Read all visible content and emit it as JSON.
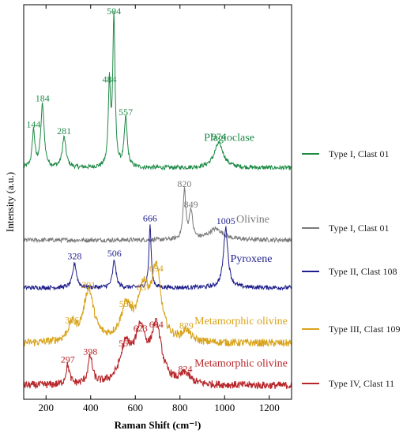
{
  "chart_data": {
    "type": "line",
    "xlabel": "Raman Shift (cm⁻¹)",
    "ylabel": "Intensity (a.u.)",
    "xlim": [
      100,
      1300
    ],
    "xticks": [
      200,
      400,
      600,
      800,
      1000,
      1200
    ],
    "y_ticks_shown": false,
    "legend_position": "right",
    "series": [
      {
        "name": "Type I, Clast 01",
        "mineral": "Plagioclase",
        "color": "#1e8a46",
        "baseline": 8.5,
        "peaks": [
          {
            "x": 144,
            "h": 1.35,
            "w": 7,
            "label": "144"
          },
          {
            "x": 184,
            "h": 2.3,
            "w": 9,
            "label": "184"
          },
          {
            "x": 281,
            "h": 1.1,
            "w": 10,
            "label": "281"
          },
          {
            "x": 484,
            "h": 3.0,
            "w": 6,
            "label": "484"
          },
          {
            "x": 504,
            "h": 5.5,
            "w": 6,
            "label": "504"
          },
          {
            "x": 557,
            "h": 1.8,
            "w": 8,
            "label": "557"
          },
          {
            "x": 974,
            "h": 0.9,
            "w": 25,
            "label": "974"
          }
        ]
      },
      {
        "name": "Type I, Clast 01",
        "mineral": "Olivine",
        "color": "#7a7a7a",
        "baseline": 5.85,
        "peaks": [
          {
            "x": 820,
            "h": 1.8,
            "w": 7,
            "label": "820"
          },
          {
            "x": 849,
            "h": 1.05,
            "w": 9,
            "label": "849"
          },
          {
            "x": 960,
            "h": 0.4,
            "w": 40,
            "label": ""
          }
        ]
      },
      {
        "name": "Type II, Clast 108",
        "mineral": "Pyroxene",
        "color": "#1e1e8c",
        "baseline": 4.1,
        "peaks": [
          {
            "x": 328,
            "h": 0.9,
            "w": 10,
            "label": "328"
          },
          {
            "x": 506,
            "h": 1.0,
            "w": 9,
            "label": "506"
          },
          {
            "x": 666,
            "h": 2.3,
            "w": 6,
            "label": "666"
          },
          {
            "x": 1005,
            "h": 2.2,
            "w": 12,
            "label": "1005"
          }
        ]
      },
      {
        "name": "Type III, Clast 109",
        "mineral": "Metamorphic  olivine",
        "color": "#d9a31a",
        "baseline": 2.05,
        "peaks": [
          {
            "x": 316,
            "h": 0.6,
            "w": 20,
            "label": "316"
          },
          {
            "x": 391,
            "h": 1.9,
            "w": 28,
            "label": "391"
          },
          {
            "x": 559,
            "h": 1.2,
            "w": 30,
            "label": "559"
          },
          {
            "x": 637,
            "h": 1.8,
            "w": 30,
            "label": "637"
          },
          {
            "x": 694,
            "h": 2.5,
            "w": 25,
            "label": "694"
          },
          {
            "x": 829,
            "h": 0.4,
            "w": 20,
            "label": "829"
          }
        ]
      },
      {
        "name": "Type IV, Clast 11",
        "mineral": "Metamorphic olivine",
        "color": "#b8262a",
        "baseline": 0.5,
        "peaks": [
          {
            "x": 297,
            "h": 0.7,
            "w": 10,
            "label": "297"
          },
          {
            "x": 398,
            "h": 1.0,
            "w": 12,
            "label": "398"
          },
          {
            "x": 557,
            "h": 1.3,
            "w": 30,
            "label": "557"
          },
          {
            "x": 623,
            "h": 1.85,
            "w": 30,
            "label": "623"
          },
          {
            "x": 694,
            "h": 2.0,
            "w": 28,
            "label": "694"
          },
          {
            "x": 824,
            "h": 0.35,
            "w": 25,
            "label": "824"
          }
        ]
      }
    ],
    "mineral_labels": [
      "Plagioclase",
      "Olivine",
      "Pyroxene",
      "Metamorphic  olivine",
      "Metamorphic olivine"
    ]
  }
}
